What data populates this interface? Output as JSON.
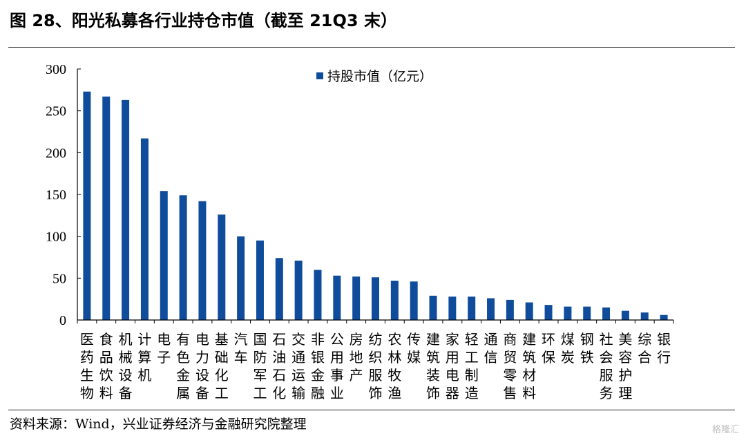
{
  "header": {
    "title": "图 28、阳光私募各行业持仓市值（截至 21Q3 末）"
  },
  "footer": {
    "source": "资料来源：Wind，兴业证券经济与金融研究院整理",
    "watermark": "格隆汇"
  },
  "chart_data": {
    "type": "bar",
    "series": [
      {
        "name": "持股市值（亿元）",
        "values": [
          273,
          267,
          263,
          217,
          154,
          149,
          142,
          126,
          100,
          95,
          74,
          71,
          60,
          53,
          52,
          51,
          47,
          46,
          29,
          28,
          28,
          26,
          24,
          21,
          18,
          16,
          16,
          15,
          11,
          9,
          6
        ]
      }
    ],
    "categories": [
      "医药生物",
      "食品饮料",
      "机械设备",
      "计算机",
      "电子",
      "有色金属",
      "电力设备",
      "基础化工",
      "汽车",
      "国防军工",
      "石油石化",
      "交通运输",
      "非银金融",
      "公用事业",
      "房地产",
      "纺织服饰",
      "农林牧渔",
      "传媒",
      "建筑装饰",
      "家用电器",
      "轻工制造",
      "通信",
      "商贸零售",
      "建筑材料",
      "环保",
      "煤炭",
      "钢铁",
      "社会服务",
      "美容护理",
      "综合",
      "银行"
    ],
    "ylim": [
      0,
      300
    ],
    "yticks": [
      "0",
      "50",
      "100",
      "150",
      "200",
      "250",
      "300"
    ],
    "legend": "top-center",
    "grid": false,
    "colors": {
      "bar": "#0f4c9c"
    }
  }
}
